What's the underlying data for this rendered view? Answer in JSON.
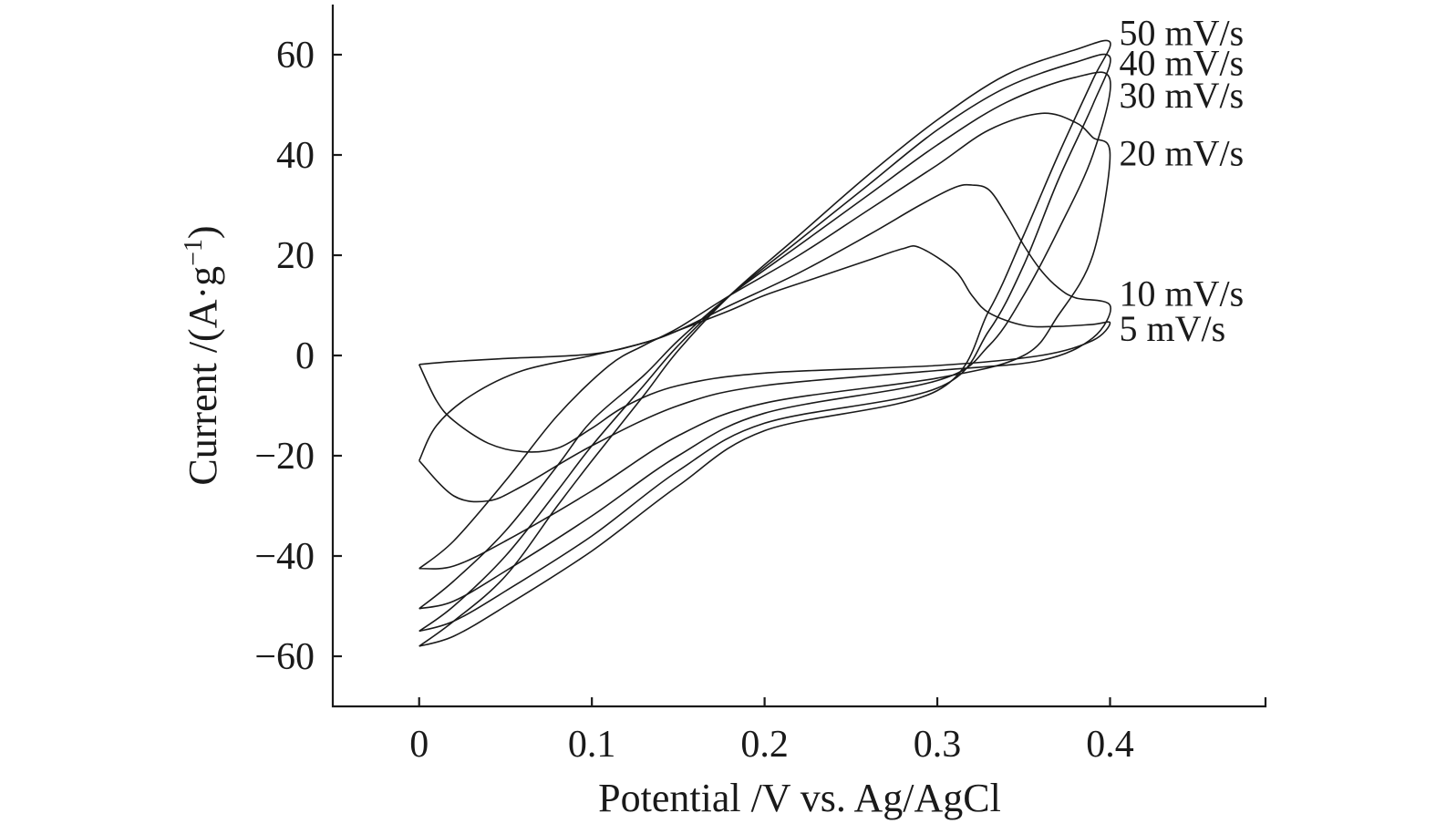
{
  "chart_data": {
    "type": "line",
    "title": "",
    "xlabel": "Potential /V vs. Ag/AgCl",
    "ylabel": {
      "main": "Current /(A·g",
      "sup": "−1",
      "close": ")"
    },
    "xlim": [
      -0.05,
      0.49
    ],
    "ylim": [
      -70,
      70
    ],
    "xticks": [
      0,
      0.1,
      0.2,
      0.3,
      0.4
    ],
    "xtick_labels": [
      "0",
      "0.1",
      "0.2",
      "0.3",
      "0.4"
    ],
    "yticks": [
      -60,
      -40,
      -20,
      0,
      20,
      40,
      60
    ],
    "ytick_labels": [
      "−60",
      "−40",
      "−20",
      "0",
      "20",
      "40",
      "60"
    ],
    "grid": false,
    "legend": "inline labels at right end of curves",
    "series": [
      {
        "name": "5 mV/s",
        "points": [
          [
            0,
            -1.8
          ],
          [
            0.02,
            -1.2
          ],
          [
            0.05,
            -0.6
          ],
          [
            0.1,
            0.3
          ],
          [
            0.13,
            2.5
          ],
          [
            0.15,
            5
          ],
          [
            0.18,
            9
          ],
          [
            0.2,
            12
          ],
          [
            0.23,
            15.5
          ],
          [
            0.26,
            19
          ],
          [
            0.28,
            21.3
          ],
          [
            0.29,
            21.5
          ],
          [
            0.31,
            17
          ],
          [
            0.32,
            12
          ],
          [
            0.33,
            8.5
          ],
          [
            0.35,
            6
          ],
          [
            0.37,
            5.8
          ],
          [
            0.39,
            6.2
          ],
          [
            0.4,
            6.5
          ],
          [
            0.39,
            3
          ],
          [
            0.36,
            0
          ],
          [
            0.3,
            -2
          ],
          [
            0.2,
            -3.5
          ],
          [
            0.15,
            -6
          ],
          [
            0.12,
            -10
          ],
          [
            0.1,
            -14.5
          ],
          [
            0.08,
            -18.5
          ],
          [
            0.06,
            -19.2
          ],
          [
            0.04,
            -17.5
          ],
          [
            0.02,
            -13
          ],
          [
            0.01,
            -9
          ],
          [
            0,
            -1.8
          ]
        ],
        "label_value": [
          0.4,
          5.5
        ]
      },
      {
        "name": "10 mV/s",
        "points": [
          [
            0,
            -21
          ],
          [
            0.01,
            -14
          ],
          [
            0.03,
            -8
          ],
          [
            0.06,
            -3
          ],
          [
            0.1,
            0
          ],
          [
            0.13,
            2.5
          ],
          [
            0.15,
            5
          ],
          [
            0.18,
            10
          ],
          [
            0.22,
            16.5
          ],
          [
            0.26,
            24
          ],
          [
            0.29,
            30
          ],
          [
            0.31,
            33.5
          ],
          [
            0.32,
            34
          ],
          [
            0.33,
            33
          ],
          [
            0.34,
            28
          ],
          [
            0.35,
            22
          ],
          [
            0.36,
            17
          ],
          [
            0.37,
            13.5
          ],
          [
            0.38,
            11.5
          ],
          [
            0.4,
            10
          ],
          [
            0.39,
            3.5
          ],
          [
            0.36,
            -1
          ],
          [
            0.3,
            -3
          ],
          [
            0.2,
            -6
          ],
          [
            0.15,
            -10
          ],
          [
            0.1,
            -18
          ],
          [
            0.06,
            -26
          ],
          [
            0.04,
            -29
          ],
          [
            0.02,
            -28
          ],
          [
            0,
            -21
          ]
        ],
        "label_value": [
          0.4,
          12.5
        ]
      },
      {
        "name": "20 mV/s",
        "points": [
          [
            0,
            -42.5
          ],
          [
            0.02,
            -37
          ],
          [
            0.05,
            -25
          ],
          [
            0.08,
            -12
          ],
          [
            0.11,
            -2
          ],
          [
            0.13,
            2
          ],
          [
            0.15,
            5.5
          ],
          [
            0.18,
            12
          ],
          [
            0.22,
            20
          ],
          [
            0.26,
            29
          ],
          [
            0.3,
            38
          ],
          [
            0.33,
            45
          ],
          [
            0.36,
            48.3
          ],
          [
            0.38,
            46.5
          ],
          [
            0.39,
            43.5
          ],
          [
            0.4,
            40
          ],
          [
            0.39,
            20
          ],
          [
            0.37,
            8
          ],
          [
            0.35,
            0
          ],
          [
            0.3,
            -4.5
          ],
          [
            0.2,
            -9.5
          ],
          [
            0.15,
            -16
          ],
          [
            0.1,
            -27
          ],
          [
            0.05,
            -37
          ],
          [
            0.02,
            -42
          ],
          [
            0,
            -42.5
          ]
        ],
        "label_value": [
          0.4,
          40.5
        ]
      },
      {
        "name": "30 mV/s",
        "points": [
          [
            0,
            -50.5
          ],
          [
            0.02,
            -45
          ],
          [
            0.05,
            -35
          ],
          [
            0.08,
            -22
          ],
          [
            0.1,
            -13
          ],
          [
            0.13,
            -4
          ],
          [
            0.15,
            3
          ],
          [
            0.18,
            12
          ],
          [
            0.22,
            22
          ],
          [
            0.26,
            32
          ],
          [
            0.3,
            42
          ],
          [
            0.34,
            50.5
          ],
          [
            0.38,
            55.5
          ],
          [
            0.4,
            55
          ],
          [
            0.39,
            40
          ],
          [
            0.37,
            25
          ],
          [
            0.35,
            12
          ],
          [
            0.33,
            2
          ],
          [
            0.3,
            -5
          ],
          [
            0.2,
            -11.5
          ],
          [
            0.15,
            -20
          ],
          [
            0.1,
            -32
          ],
          [
            0.05,
            -43
          ],
          [
            0.02,
            -49
          ],
          [
            0,
            -50.5
          ]
        ],
        "label_value": [
          0.4,
          52
        ]
      },
      {
        "name": "40 mV/s",
        "points": [
          [
            0,
            -55
          ],
          [
            0.02,
            -50
          ],
          [
            0.05,
            -40
          ],
          [
            0.08,
            -27
          ],
          [
            0.1,
            -18
          ],
          [
            0.13,
            -6
          ],
          [
            0.15,
            2
          ],
          [
            0.18,
            12
          ],
          [
            0.22,
            23
          ],
          [
            0.26,
            34
          ],
          [
            0.3,
            45
          ],
          [
            0.34,
            53.5
          ],
          [
            0.38,
            58.5
          ],
          [
            0.4,
            59.5
          ],
          [
            0.39,
            50
          ],
          [
            0.37,
            35
          ],
          [
            0.35,
            18
          ],
          [
            0.33,
            5
          ],
          [
            0.3,
            -6.5
          ],
          [
            0.2,
            -13.5
          ],
          [
            0.15,
            -23
          ],
          [
            0.1,
            -36
          ],
          [
            0.05,
            -47
          ],
          [
            0.02,
            -53
          ],
          [
            0,
            -55
          ]
        ],
        "label_value": [
          0.4,
          58.5
        ]
      },
      {
        "name": "50 mV/s",
        "points": [
          [
            0,
            -58
          ],
          [
            0.02,
            -53
          ],
          [
            0.05,
            -44
          ],
          [
            0.08,
            -30
          ],
          [
            0.1,
            -21
          ],
          [
            0.13,
            -8
          ],
          [
            0.15,
            1
          ],
          [
            0.18,
            12
          ],
          [
            0.22,
            24
          ],
          [
            0.26,
            36
          ],
          [
            0.3,
            47
          ],
          [
            0.34,
            56
          ],
          [
            0.38,
            61
          ],
          [
            0.4,
            62.5
          ],
          [
            0.39,
            55
          ],
          [
            0.37,
            40
          ],
          [
            0.35,
            24
          ],
          [
            0.33,
            9
          ],
          [
            0.3,
            -7
          ],
          [
            0.2,
            -15
          ],
          [
            0.15,
            -26
          ],
          [
            0.1,
            -39
          ],
          [
            0.05,
            -50
          ],
          [
            0.02,
            -56
          ],
          [
            0,
            -58
          ]
        ],
        "label_value": [
          0.4,
          64.5
        ]
      }
    ]
  }
}
